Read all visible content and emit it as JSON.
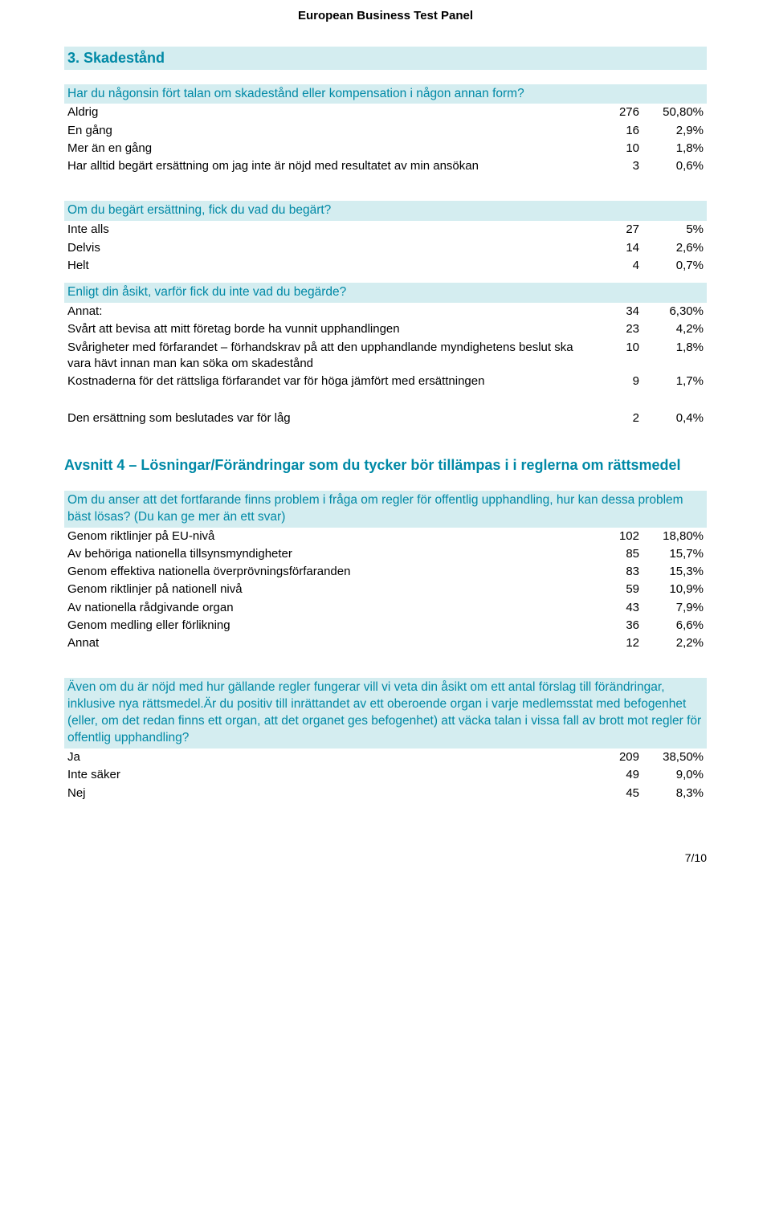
{
  "header": "European Business Test Panel",
  "section3": {
    "title": "3. Skadestånd",
    "q1": {
      "text": "Har du någonsin fört talan om skadestånd eller kompensation i någon annan form?",
      "rows": [
        {
          "label": "Aldrig",
          "n": "276",
          "pct": "50,80%"
        },
        {
          "label": "En gång",
          "n": "16",
          "pct": "2,9%"
        },
        {
          "label": "Mer än en gång",
          "n": "10",
          "pct": "1,8%"
        },
        {
          "label": "Har alltid begärt ersättning om jag inte är nöjd med resultatet av min ansökan",
          "n": "3",
          "pct": "0,6%"
        }
      ]
    },
    "q2": {
      "text": "Om du begärt ersättning, fick du vad du begärt?",
      "rows": [
        {
          "label": "Inte alls",
          "n": "27",
          "pct": "5%"
        },
        {
          "label": "Delvis",
          "n": "14",
          "pct": "2,6%"
        },
        {
          "label": "Helt",
          "n": "4",
          "pct": "0,7%"
        }
      ]
    },
    "q3": {
      "text": "Enligt din åsikt, varför fick du inte vad du begärde?",
      "rows": [
        {
          "label": "Annat:",
          "n": "34",
          "pct": "6,30%"
        },
        {
          "label": "Svårt att bevisa att mitt företag borde ha vunnit upphandlingen",
          "n": "23",
          "pct": "4,2%"
        },
        {
          "label": "Svårigheter med förfarandet – förhandskrav på att den upphandlande myndighetens beslut ska vara hävt innan man kan söka om skadestånd",
          "n": "10",
          "pct": "1,8%"
        },
        {
          "label": "Kostnaderna för det rättsliga förfarandet var för höga jämfört med ersättningen",
          "n": "9",
          "pct": "1,7%"
        }
      ],
      "extra": {
        "label": "Den ersättning som beslutades var för låg",
        "n": "2",
        "pct": "0,4%"
      }
    }
  },
  "section4": {
    "title": "Avsnitt 4 – Lösningar/Förändringar som du tycker bör tillämpas i i reglerna om rättsmedel",
    "q1": {
      "text": "Om du anser att det fortfarande finns problem i fråga om regler för offentlig upphandling, hur kan dessa problem bäst lösas? (Du kan ge mer än ett svar)",
      "rows": [
        {
          "label": "Genom riktlinjer på EU-nivå",
          "n": "102",
          "pct": "18,80%"
        },
        {
          "label": "Av behöriga nationella tillsynsmyndigheter",
          "n": "85",
          "pct": "15,7%"
        },
        {
          "label": "Genom effektiva nationella överprövningsförfaranden",
          "n": "83",
          "pct": "15,3%"
        },
        {
          "label": "Genom riktlinjer på nationell nivå",
          "n": "59",
          "pct": "10,9%"
        },
        {
          "label": "Av nationella rådgivande organ",
          "n": "43",
          "pct": "7,9%"
        },
        {
          "label": "Genom medling eller förlikning",
          "n": "36",
          "pct": "6,6%"
        },
        {
          "label": "Annat",
          "n": "12",
          "pct": "2,2%"
        }
      ]
    },
    "q2": {
      "text": "Även om du är nöjd med hur gällande regler fungerar vill vi veta din åsikt om ett antal förslag till förändringar, inklusive nya rättsmedel.Är du positiv till inrättandet av ett oberoende organ i varje medlemsstat med befogenhet (eller, om det redan finns ett organ, att det organet ges befogenhet) att väcka talan i vissa fall av brott mot regler för offentlig upphandling?",
      "rows": [
        {
          "label": "Ja",
          "n": "209",
          "pct": "38,50%"
        },
        {
          "label": "Inte säker",
          "n": "49",
          "pct": "9,0%"
        },
        {
          "label": "Nej",
          "n": "45",
          "pct": "8,3%"
        }
      ]
    }
  },
  "pageNum": "7/10"
}
